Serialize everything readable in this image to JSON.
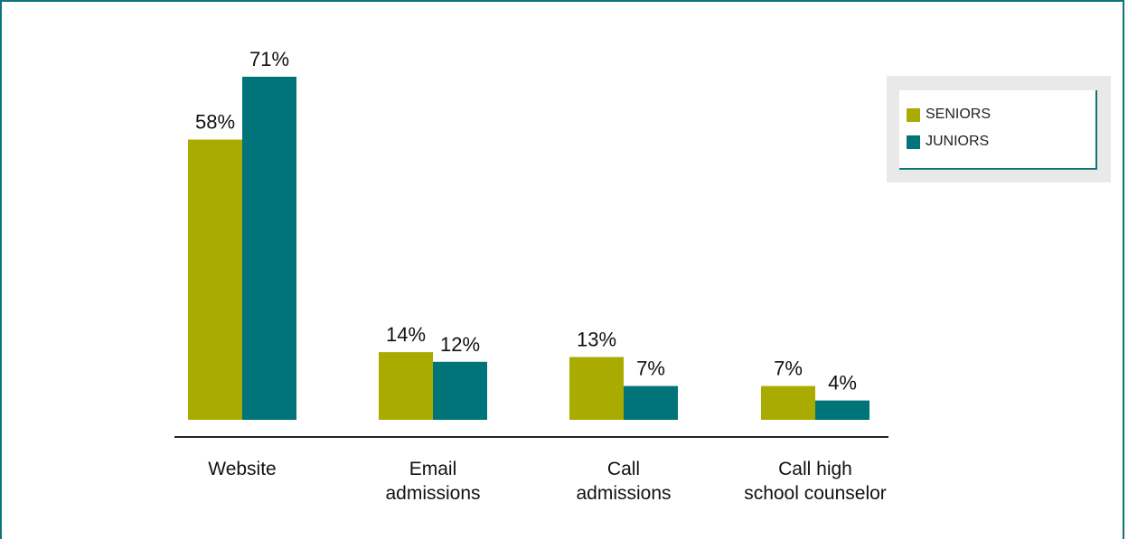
{
  "chart_data": {
    "type": "bar",
    "categories": [
      "Website",
      "Email admissions",
      "Call admissions",
      "Call high school counselor"
    ],
    "category_lines": [
      [
        "Website"
      ],
      [
        "Email",
        "admissions"
      ],
      [
        "Call",
        "admissions"
      ],
      [
        "Call high",
        "school counselor"
      ]
    ],
    "series": [
      {
        "name": "SENIORS",
        "values": [
          58,
          14,
          13,
          7
        ],
        "labels": [
          "58%",
          "14%",
          "13%",
          "7%"
        ],
        "color": "#aaab00"
      },
      {
        "name": "JUNIORS",
        "values": [
          71,
          12,
          7,
          4
        ],
        "labels": [
          "71%",
          "12%",
          "7%",
          "4%"
        ],
        "color": "#007479"
      }
    ],
    "ylim": [
      0,
      100
    ],
    "grid": false,
    "legend_position": "top-right"
  },
  "legend": {
    "items": [
      {
        "label": "SENIORS",
        "color": "#aaab00"
      },
      {
        "label": "JUNIORS",
        "color": "#007479"
      }
    ]
  }
}
